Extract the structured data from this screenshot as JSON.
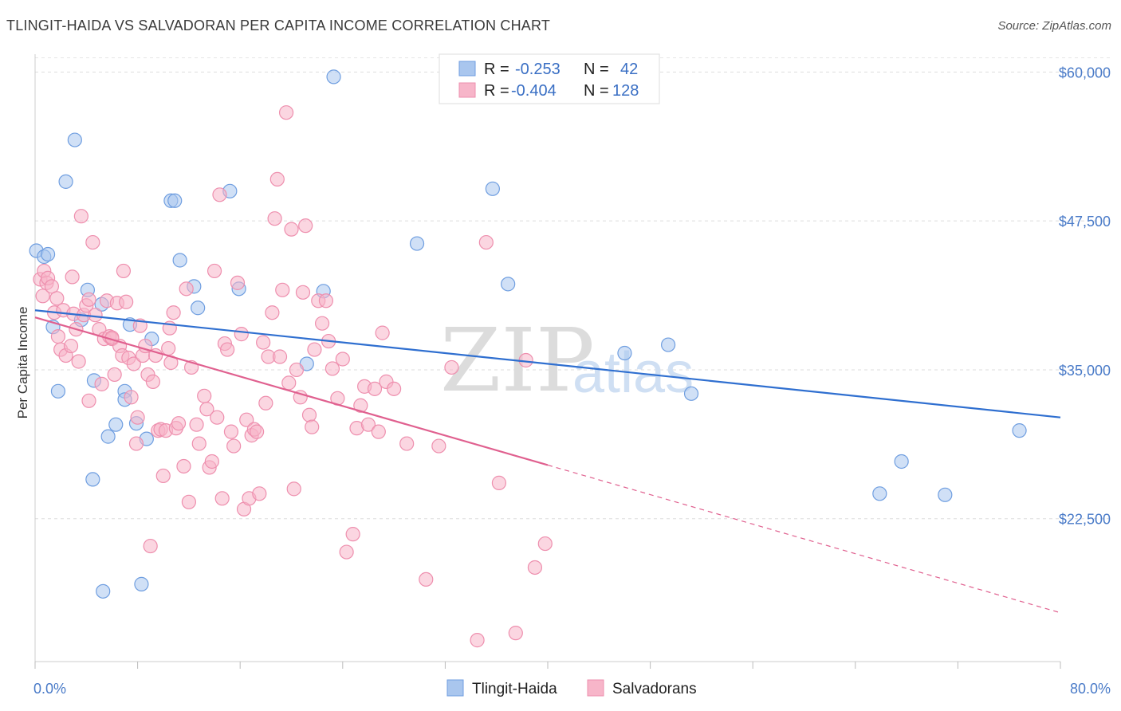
{
  "header": {
    "title": "TLINGIT-HAIDA VS SALVADORAN PER CAPITA INCOME CORRELATION CHART",
    "source": "Source: ZipAtlas.com"
  },
  "watermark": {
    "zip": "ZIP",
    "atlas": "atlas"
  },
  "legend_box": {
    "rows": [
      {
        "r_label": "R =",
        "r_value": "-0.253",
        "n_label": "N =",
        "n_value": "42",
        "color": "#a9c6ee"
      },
      {
        "r_label": "R =",
        "r_value": "-0.404",
        "n_label": "N =",
        "n_value": "128",
        "color": "#f7b5c9"
      }
    ]
  },
  "bottom_legend": [
    {
      "label": "Tlingit-Haida",
      "color": "#a9c6ee"
    },
    {
      "label": "Salvadorans",
      "color": "#f7b5c9"
    }
  ],
  "chart_data": {
    "type": "scatter",
    "title": "TLINGIT-HAIDA VS SALVADORAN PER CAPITA INCOME CORRELATION CHART",
    "ylabel": "Per Capita Income",
    "xlabel": "",
    "xlim": [
      0,
      80
    ],
    "ylim": [
      10500,
      61500
    ],
    "x_tick_labels": [
      "0.0%",
      "80.0%"
    ],
    "y_ticks": [
      22500,
      35000,
      47500,
      60000
    ],
    "y_tick_labels": [
      "$22,500",
      "$35,000",
      "$47,500",
      "$60,000"
    ],
    "grid": true,
    "legend_position": "top-center",
    "series": [
      {
        "name": "Tlingit-Haida",
        "color": "#a9c6ee",
        "stroke": "#6f9ee0",
        "line_color": "#2f6fd0",
        "trend": {
          "x0": 0,
          "y0": 40000,
          "x1": 80,
          "y1": 31000
        },
        "points": [
          [
            0.1,
            45000
          ],
          [
            0.7,
            44500
          ],
          [
            1.0,
            44700
          ],
          [
            1.4,
            38600
          ],
          [
            1.8,
            33200
          ],
          [
            2.4,
            50800
          ],
          [
            3.1,
            54300
          ],
          [
            3.6,
            39200
          ],
          [
            4.1,
            41700
          ],
          [
            4.5,
            25800
          ],
          [
            4.6,
            34100
          ],
          [
            5.2,
            40500
          ],
          [
            5.7,
            29400
          ],
          [
            6.3,
            30400
          ],
          [
            7.0,
            33200
          ],
          [
            7.0,
            32500
          ],
          [
            7.4,
            38800
          ],
          [
            7.9,
            30500
          ],
          [
            8.3,
            17000
          ],
          [
            8.7,
            29200
          ],
          [
            9.1,
            37600
          ],
          [
            10.6,
            49200
          ],
          [
            10.9,
            49200
          ],
          [
            11.3,
            44200
          ],
          [
            12.4,
            42000
          ],
          [
            12.7,
            40200
          ],
          [
            15.2,
            50000
          ],
          [
            15.9,
            41800
          ],
          [
            23.3,
            59600
          ],
          [
            21.2,
            35500
          ],
          [
            22.5,
            41600
          ],
          [
            29.8,
            45600
          ],
          [
            35.7,
            50200
          ],
          [
            36.9,
            42200
          ],
          [
            46.0,
            36400
          ],
          [
            49.4,
            37100
          ],
          [
            51.2,
            33000
          ],
          [
            67.6,
            27300
          ],
          [
            65.9,
            24600
          ],
          [
            71.0,
            24500
          ],
          [
            76.8,
            29900
          ],
          [
            5.3,
            16400
          ]
        ]
      },
      {
        "name": "Salvadorans",
        "color": "#f7b5c9",
        "stroke": "#ee8fae",
        "line_color": "#e0608f",
        "trend": {
          "x0": 0,
          "y0": 39400,
          "x1": 40,
          "y1": 27000
        },
        "trend_dashed": {
          "x0": 40,
          "y0": 27000,
          "x1": 80,
          "y1": 14600
        },
        "points": [
          [
            0.4,
            42600
          ],
          [
            0.6,
            41200
          ],
          [
            0.7,
            43300
          ],
          [
            0.9,
            42300
          ],
          [
            1.0,
            42700
          ],
          [
            1.3,
            42000
          ],
          [
            1.5,
            39800
          ],
          [
            1.7,
            41000
          ],
          [
            1.8,
            37800
          ],
          [
            2.0,
            36700
          ],
          [
            2.2,
            40000
          ],
          [
            2.4,
            36200
          ],
          [
            2.8,
            37000
          ],
          [
            2.9,
            42800
          ],
          [
            3.0,
            39700
          ],
          [
            3.2,
            38400
          ],
          [
            3.4,
            35700
          ],
          [
            3.6,
            47900
          ],
          [
            3.8,
            39600
          ],
          [
            4.0,
            40400
          ],
          [
            4.2,
            40900
          ],
          [
            4.2,
            32400
          ],
          [
            4.5,
            45700
          ],
          [
            4.7,
            39600
          ],
          [
            5.0,
            38400
          ],
          [
            5.2,
            33800
          ],
          [
            5.4,
            37600
          ],
          [
            5.6,
            40800
          ],
          [
            5.8,
            37800
          ],
          [
            6.0,
            37600
          ],
          [
            6.2,
            34600
          ],
          [
            6.4,
            40600
          ],
          [
            6.6,
            37000
          ],
          [
            6.8,
            36200
          ],
          [
            6.9,
            43300
          ],
          [
            7.1,
            40700
          ],
          [
            7.3,
            36000
          ],
          [
            7.5,
            32700
          ],
          [
            7.7,
            35500
          ],
          [
            7.9,
            28800
          ],
          [
            8.0,
            31000
          ],
          [
            8.2,
            38700
          ],
          [
            8.4,
            36200
          ],
          [
            8.6,
            37000
          ],
          [
            8.8,
            34600
          ],
          [
            9.0,
            20200
          ],
          [
            9.2,
            34000
          ],
          [
            9.4,
            36200
          ],
          [
            9.6,
            29900
          ],
          [
            9.8,
            30000
          ],
          [
            10.0,
            26100
          ],
          [
            10.2,
            29900
          ],
          [
            10.4,
            36800
          ],
          [
            10.6,
            35600
          ],
          [
            10.8,
            39800
          ],
          [
            11.0,
            30100
          ],
          [
            11.2,
            30500
          ],
          [
            11.6,
            26900
          ],
          [
            11.8,
            41800
          ],
          [
            12.0,
            23900
          ],
          [
            12.2,
            35200
          ],
          [
            12.6,
            30400
          ],
          [
            12.8,
            28800
          ],
          [
            13.2,
            32800
          ],
          [
            13.4,
            31700
          ],
          [
            13.6,
            26800
          ],
          [
            13.8,
            27300
          ],
          [
            14.0,
            43300
          ],
          [
            14.2,
            31000
          ],
          [
            14.4,
            49700
          ],
          [
            14.6,
            24200
          ],
          [
            14.8,
            37200
          ],
          [
            15.0,
            36700
          ],
          [
            15.3,
            29800
          ],
          [
            15.5,
            28600
          ],
          [
            15.8,
            42300
          ],
          [
            16.1,
            38000
          ],
          [
            16.3,
            23300
          ],
          [
            16.5,
            30800
          ],
          [
            16.7,
            24200
          ],
          [
            16.9,
            29500
          ],
          [
            17.1,
            30000
          ],
          [
            17.3,
            29800
          ],
          [
            17.5,
            24600
          ],
          [
            17.8,
            37300
          ],
          [
            18.0,
            32200
          ],
          [
            18.2,
            36100
          ],
          [
            18.5,
            39800
          ],
          [
            18.7,
            47700
          ],
          [
            18.9,
            51000
          ],
          [
            19.1,
            36100
          ],
          [
            19.3,
            41700
          ],
          [
            19.6,
            56600
          ],
          [
            19.8,
            33900
          ],
          [
            20.0,
            46800
          ],
          [
            20.2,
            25000
          ],
          [
            20.4,
            35000
          ],
          [
            20.7,
            32700
          ],
          [
            20.9,
            41500
          ],
          [
            21.1,
            47100
          ],
          [
            21.4,
            31200
          ],
          [
            21.6,
            30200
          ],
          [
            21.8,
            36700
          ],
          [
            22.1,
            40800
          ],
          [
            22.4,
            38900
          ],
          [
            22.7,
            40800
          ],
          [
            22.9,
            37400
          ],
          [
            23.2,
            35100
          ],
          [
            23.6,
            32600
          ],
          [
            24.0,
            35900
          ],
          [
            24.3,
            19700
          ],
          [
            24.8,
            21200
          ],
          [
            25.1,
            30100
          ],
          [
            25.4,
            32000
          ],
          [
            25.7,
            33600
          ],
          [
            26.0,
            30400
          ],
          [
            26.5,
            33400
          ],
          [
            26.8,
            29800
          ],
          [
            27.1,
            38100
          ],
          [
            27.4,
            34000
          ],
          [
            28.0,
            33400
          ],
          [
            29.0,
            28800
          ],
          [
            30.5,
            17400
          ],
          [
            31.5,
            28600
          ],
          [
            32.5,
            35200
          ],
          [
            34.5,
            12300
          ],
          [
            35.2,
            45700
          ],
          [
            36.2,
            25500
          ],
          [
            37.5,
            12900
          ],
          [
            38.3,
            35800
          ],
          [
            39.0,
            18400
          ],
          [
            39.8,
            20400
          ],
          [
            10.5,
            38500
          ],
          [
            6.0,
            37700
          ]
        ]
      }
    ]
  }
}
